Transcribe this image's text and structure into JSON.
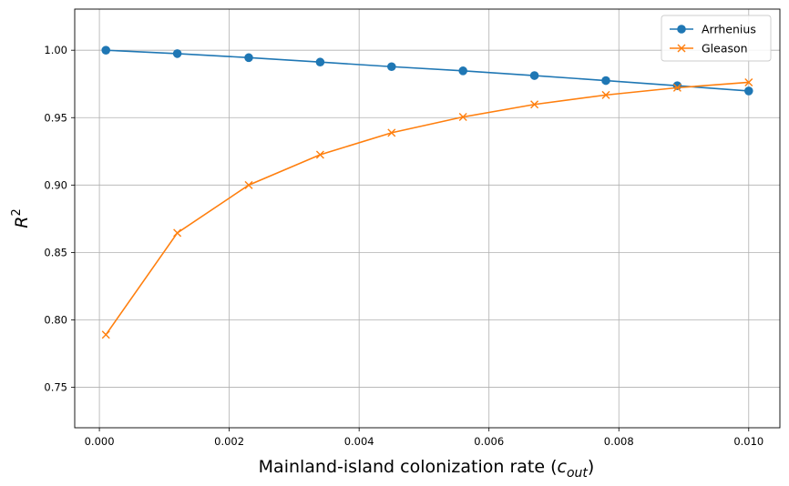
{
  "chart_data": {
    "type": "line",
    "xlabel": "Mainland-island colonization rate (c_out)",
    "xlabel_main": "Mainland-island colonization rate (",
    "xlabel_sym": "c",
    "xlabel_sub": "out",
    "xlabel_close": ")",
    "ylabel": "R^2",
    "ylabel_base": "R",
    "ylabel_sup": "2",
    "xlim": [
      -0.00038,
      0.01048
    ],
    "ylim": [
      0.72,
      1.0305
    ],
    "grid": true,
    "legend_position": "top-right",
    "x_ticks": [
      0.0,
      0.002,
      0.004,
      0.006,
      0.008,
      0.01
    ],
    "x_tick_labels": [
      "0.000",
      "0.002",
      "0.004",
      "0.006",
      "0.008",
      "0.010"
    ],
    "y_ticks": [
      0.75,
      0.8,
      0.85,
      0.9,
      0.95,
      1.0
    ],
    "y_tick_labels": [
      "0.75",
      "0.80",
      "0.85",
      "0.90",
      "0.95",
      "1.00"
    ],
    "x": [
      0.0001,
      0.0012,
      0.0023,
      0.0034,
      0.0045,
      0.0056,
      0.0067,
      0.0078,
      0.0089,
      0.01
    ],
    "series": [
      {
        "name": "Arrhenius",
        "color": "#1f77b4",
        "marker": "circle",
        "values": [
          1.0,
          0.9975,
          0.9945,
          0.9912,
          0.9878,
          0.9847,
          0.9812,
          0.9775,
          0.9737,
          0.9698
        ]
      },
      {
        "name": "Gleason",
        "color": "#ff7f0e",
        "marker": "x",
        "values": [
          0.789,
          0.8645,
          0.9,
          0.9225,
          0.9388,
          0.9505,
          0.9598,
          0.9668,
          0.9722,
          0.9762
        ]
      }
    ]
  }
}
